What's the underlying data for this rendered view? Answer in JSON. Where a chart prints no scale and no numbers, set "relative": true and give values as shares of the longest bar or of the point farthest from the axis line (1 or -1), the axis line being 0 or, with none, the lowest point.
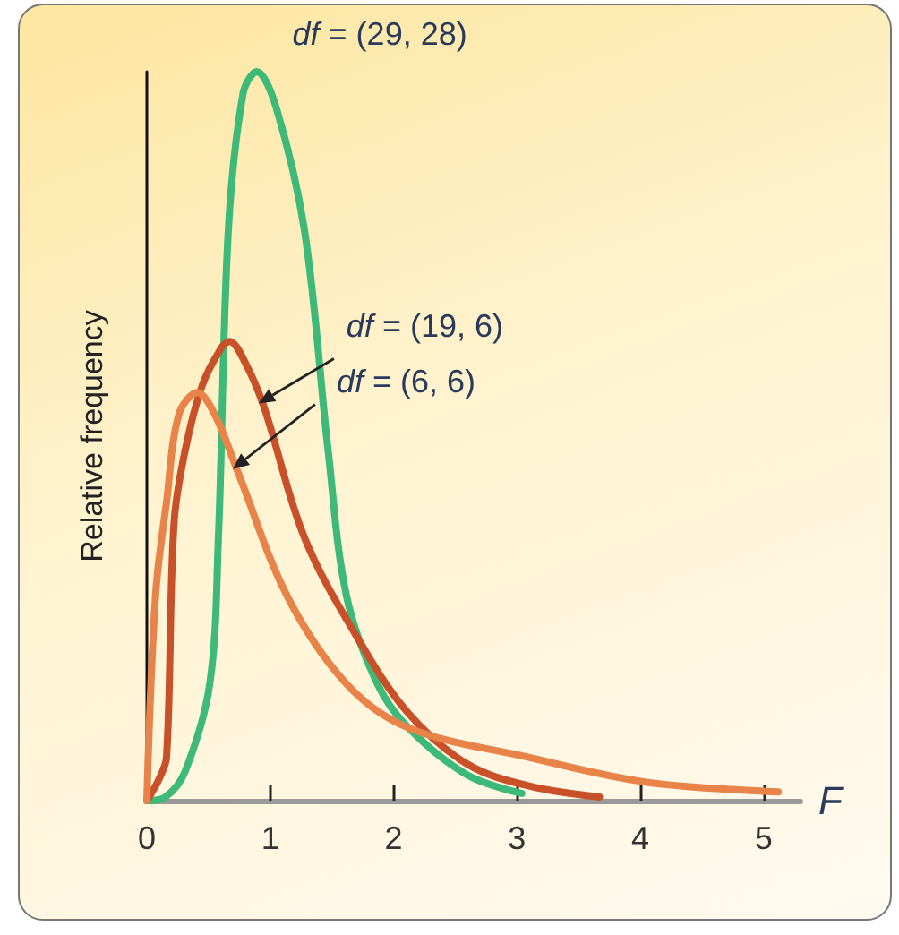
{
  "chart_data": {
    "type": "line",
    "relative": true,
    "xlabel": "F",
    "ylabel": "Relative frequency",
    "marker": "none",
    "xlim": [
      0,
      5.3
    ],
    "xticks": [
      0,
      1,
      2,
      3,
      4,
      5
    ],
    "series": [
      {
        "color": "#3dba7a",
        "x": [
          0,
          0.15,
          0.31,
          0.51,
          0.58,
          0.66,
          0.78,
          0.89,
          1.05,
          1.28,
          1.47,
          1.62,
          1.87,
          2.12,
          2.6,
          3.04
        ],
        "values": [
          0,
          0.005,
          0.04,
          0.16,
          0.36,
          0.78,
          0.97,
          1.0,
          0.95,
          0.78,
          0.48,
          0.28,
          0.16,
          0.1,
          0.035,
          0.01
        ]
      },
      {
        "color": "#c8512a",
        "x": [
          0,
          0.1,
          0.16,
          0.22,
          0.31,
          0.45,
          0.6,
          0.67,
          0.8,
          0.95,
          1.28,
          1.72,
          2.12,
          2.6,
          3.1,
          3.67
        ],
        "values": [
          0,
          0.03,
          0.06,
          0.38,
          0.48,
          0.57,
          0.62,
          0.63,
          0.6,
          0.54,
          0.36,
          0.22,
          0.12,
          0.05,
          0.02,
          0.005
        ]
      },
      {
        "color": "#e8844a",
        "x": [
          0,
          0.07,
          0.16,
          0.26,
          0.41,
          0.55,
          0.74,
          1.14,
          1.62,
          2.12,
          3.08,
          4.06,
          5.12
        ],
        "values": [
          0,
          0.28,
          0.41,
          0.53,
          0.56,
          0.53,
          0.45,
          0.28,
          0.16,
          0.1,
          0.06,
          0.025,
          0.012
        ]
      }
    ],
    "annotations": [
      "df = (29, 28)",
      "df = (19, 6)",
      "df = (6, 6)"
    ]
  }
}
